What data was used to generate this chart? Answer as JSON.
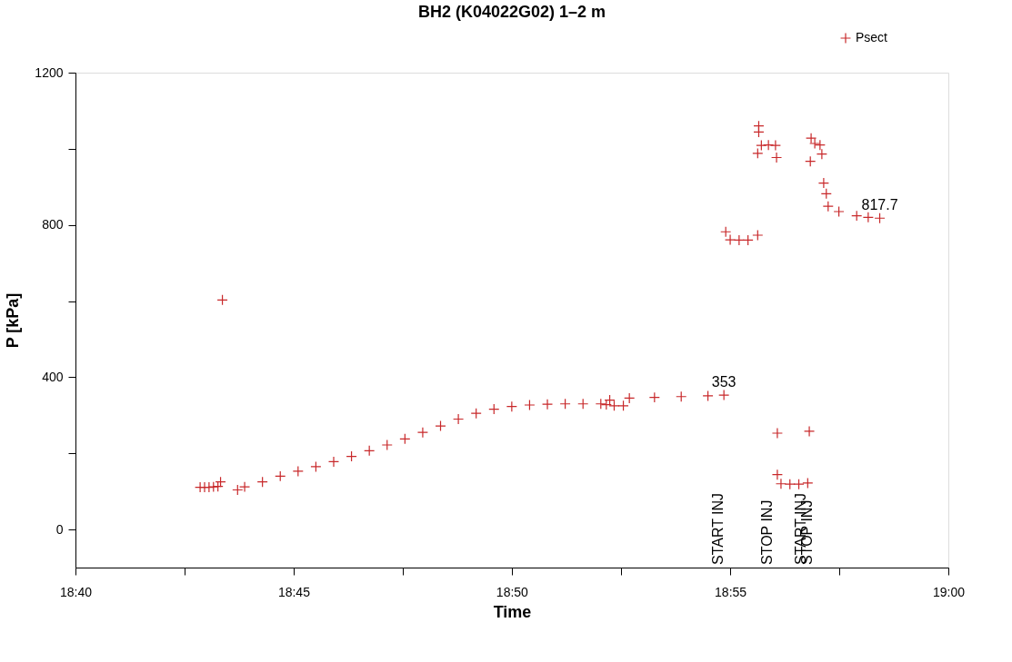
{
  "chart_data": {
    "type": "scatter",
    "title": "BH2 (K04022G02) 1–2  m",
    "xlabel": "Time",
    "ylabel": "P [kPa]",
    "xlim": [
      18.6667,
      19
    ],
    "ylim": [
      -100,
      1200
    ],
    "xticks": [
      {
        "value": 18.6667,
        "label": "18:40"
      },
      {
        "value": 18.7083,
        "label": null
      },
      {
        "value": 18.75,
        "label": "18:45"
      },
      {
        "value": 18.7917,
        "label": null
      },
      {
        "value": 18.8333,
        "label": "18:50"
      },
      {
        "value": 18.875,
        "label": null
      },
      {
        "value": 18.9167,
        "label": "18:55"
      },
      {
        "value": 18.9583,
        "label": null
      },
      {
        "value": 19,
        "label": "19:00"
      }
    ],
    "yticks": [
      0,
      {
        "value": 200,
        "label": null
      },
      400,
      {
        "value": 600,
        "label": null
      },
      800,
      {
        "value": 1000,
        "label": null
      },
      {
        "value": 1200,
        "label": "1200"
      }
    ],
    "grid": false,
    "legend": "top right",
    "marker": "cross",
    "series": [
      {
        "name": "Psect",
        "color": "#c8282a",
        "x": [
          18.7143,
          18.716,
          18.7177,
          18.7194,
          18.7211,
          18.7221,
          18.7228,
          18.7286,
          18.7313,
          18.7381,
          18.7449,
          18.7517,
          18.7585,
          18.7653,
          18.7721,
          18.7789,
          18.7857,
          18.7925,
          18.7993,
          18.8061,
          18.8129,
          18.8197,
          18.8265,
          18.8333,
          18.8401,
          18.8469,
          18.8537,
          18.8605,
          18.8673,
          18.8694,
          18.8707,
          18.8724,
          18.8759,
          18.8782,
          18.8878,
          18.898,
          18.9082,
          18.9143,
          18.915,
          18.9167,
          18.9201,
          18.9235,
          18.9272,
          18.9276,
          18.9276,
          18.9272,
          18.9286,
          18.9313,
          18.934,
          18.9344,
          18.9347,
          18.9347,
          18.9361,
          18.9395,
          18.9429,
          18.9463,
          18.9469,
          18.9476,
          18.9473,
          18.949,
          18.951,
          18.9517,
          18.9524,
          18.9534,
          18.9541,
          18.9582,
          18.965,
          18.9694,
          18.9738
        ],
        "values": [
          111,
          111,
          111,
          112,
          113,
          125,
          603,
          104,
          112,
          125,
          140,
          153,
          165,
          178,
          192,
          207,
          222,
          238,
          255,
          272,
          290,
          305,
          316,
          323,
          327,
          329,
          330,
          330,
          330,
          328,
          340,
          325,
          325,
          345,
          347,
          349,
          351,
          353,
          782,
          761,
          760,
          760,
          773,
          1060,
          1044,
          988,
          1009,
          1010,
          1009,
          977,
          253,
          144,
          120,
          119,
          119,
          122,
          258,
          1028,
          967,
          1014,
          1010,
          986,
          910,
          882,
          849,
          835,
          824,
          820,
          817.7
        ],
        "value_labels": [
          null,
          null,
          null,
          null,
          null,
          null,
          null,
          null,
          null,
          null,
          null,
          null,
          null,
          null,
          null,
          null,
          null,
          null,
          null,
          null,
          null,
          null,
          null,
          null,
          null,
          null,
          null,
          null,
          null,
          null,
          null,
          null,
          null,
          null,
          null,
          null,
          null,
          "353",
          null,
          null,
          null,
          null,
          null,
          null,
          null,
          null,
          null,
          null,
          null,
          null,
          null,
          null,
          null,
          null,
          null,
          null,
          null,
          null,
          null,
          null,
          null,
          null,
          null,
          null,
          null,
          null,
          null,
          null,
          "817.7"
        ]
      }
    ],
    "annotations": [
      "START INJ",
      "STOP INJ",
      "START INJ",
      "STOP INJ"
    ]
  }
}
